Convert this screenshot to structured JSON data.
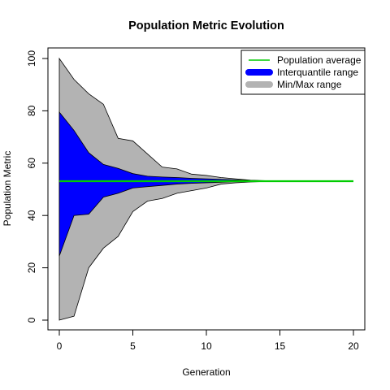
{
  "chart_data": {
    "type": "area",
    "title": "Population Metric Evolution",
    "xlabel": "Generation",
    "ylabel": "Population Metric",
    "xlim": [
      0,
      20
    ],
    "ylim": [
      0,
      100
    ],
    "xticks": [
      0,
      5,
      10,
      15,
      20
    ],
    "yticks": [
      0,
      20,
      40,
      60,
      80,
      100
    ],
    "legend_position": "top-right",
    "x": [
      0,
      1,
      2,
      3,
      4,
      5,
      6,
      7,
      8,
      9,
      10,
      11,
      12,
      13,
      14,
      15,
      16,
      17,
      18,
      19,
      20
    ],
    "series": [
      {
        "name": "Min/Max range",
        "color": "#b3b3b3",
        "lower": [
          0,
          1.5,
          20,
          27.5,
          32,
          41.5,
          45.5,
          46.5,
          48.5,
          49.5,
          50.5,
          52,
          52.5,
          52.8,
          53,
          53.1,
          53.1,
          53.1,
          53.1,
          53.1,
          53.1
        ],
        "upper": [
          100,
          92,
          86.5,
          82.5,
          69.5,
          68.5,
          63.5,
          58.5,
          57.8,
          55.8,
          55.3,
          54.5,
          54,
          53.5,
          53.3,
          53.2,
          53.1,
          53.1,
          53.1,
          53.1,
          53.1
        ]
      },
      {
        "name": "Interquantile range",
        "color": "#0000ff",
        "lower": [
          24.5,
          40,
          40.5,
          47,
          48.5,
          50.5,
          51,
          51.5,
          52,
          52.3,
          52.5,
          52.7,
          52.9,
          53,
          53,
          53.1,
          53.1,
          53.1,
          53.1,
          53.1,
          53.1
        ],
        "upper": [
          79.5,
          72.5,
          64,
          59.5,
          58,
          56,
          55,
          54.7,
          54.5,
          54.2,
          54,
          53.8,
          53.6,
          53.4,
          53.2,
          53.1,
          53.1,
          53.1,
          53.1,
          53.1,
          53.1
        ]
      },
      {
        "name": "Population average",
        "color": "#00cc00",
        "values": [
          53.1,
          53.1,
          53.1,
          53.1,
          53.1,
          53.1,
          53.1,
          53.1,
          53.1,
          53.1,
          53.1,
          53.1,
          53.1,
          53.1,
          53.1,
          53.1,
          53.1,
          53.1,
          53.1,
          53.1,
          53.1
        ]
      }
    ],
    "legend": [
      {
        "label": "Population average",
        "color": "#00cc00",
        "style": "line"
      },
      {
        "label": "Interquantile range",
        "color": "#0000ff",
        "style": "thick"
      },
      {
        "label": "Min/Max range",
        "color": "#b3b3b3",
        "style": "thick"
      }
    ]
  }
}
